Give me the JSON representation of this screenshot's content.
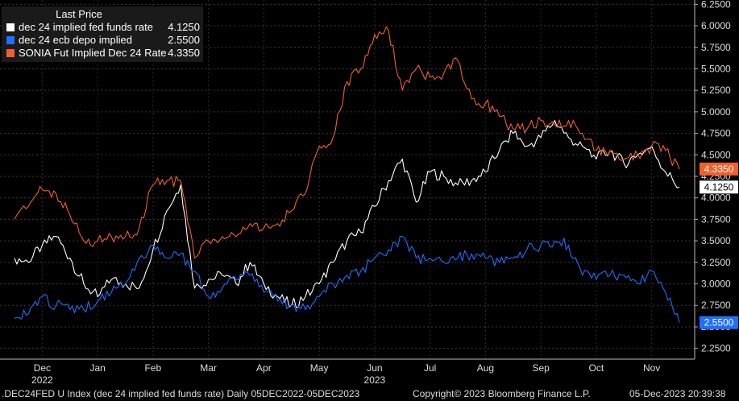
{
  "legend": {
    "title": "Last Price",
    "entries": [
      {
        "label": "dec 24 implied fed funds rate",
        "value": "4.1250",
        "color": "#ffffff"
      },
      {
        "label": "dec 24 ecb depo implied",
        "value": "2.5500",
        "color": "#1f6fff"
      },
      {
        "label": "SONIA Fut Implied Dec 24 Rate",
        "value": "4.3350",
        "color": "#f0602c"
      }
    ]
  },
  "footer": {
    "ticker": ".DEC24FED U Index (dec 24 implied fed funds rate)  Daily 05DEC2022-05DEC2023",
    "copyright": "Copyright© 2023 Bloomberg Finance L.P.",
    "timestamp": "05-Dec-2023 20:39:38"
  },
  "chart_data": {
    "type": "line",
    "title": "",
    "ylim": [
      2.125,
      6.3
    ],
    "yticks": [
      2.25,
      2.5,
      2.75,
      3.0,
      3.25,
      3.5,
      3.75,
      4.0,
      4.25,
      4.5,
      4.75,
      5.0,
      5.25,
      5.5,
      5.75,
      6.0,
      6.25
    ],
    "ytick_labels": [
      "2.2500",
      "2.5000",
      "2.7500",
      "3.0000",
      "3.2500",
      "3.5000",
      "3.7500",
      "4.0000",
      "4.2500",
      "4.5000",
      "4.7500",
      "5.0000",
      "5.2500",
      "5.5000",
      "5.7500",
      "6.0000",
      "6.2500"
    ],
    "month_labels": [
      "Dec",
      "Jan",
      "Feb",
      "Mar",
      "Apr",
      "May",
      "Jun",
      "Jul",
      "Aug",
      "Sep",
      "Oct",
      "Nov"
    ],
    "year_labels": [
      {
        "text": "2022",
        "month_index": 0
      },
      {
        "text": "2023",
        "month_index": 6
      }
    ],
    "last_values": [
      {
        "text": "4.3350",
        "value": 4.335,
        "color": "#f0602c",
        "text_color": "#ffffff"
      },
      {
        "text": "4.1250",
        "value": 4.125,
        "color": "#ffffff",
        "text_color": "#000000"
      },
      {
        "text": "2.5500",
        "value": 2.55,
        "color": "#1f6fff",
        "text_color": "#ffffff"
      }
    ],
    "x": [
      0,
      0.25,
      0.5,
      0.75,
      1,
      1.25,
      1.5,
      1.75,
      2,
      2.25,
      2.5,
      2.75,
      3,
      3.25,
      3.5,
      3.75,
      4,
      4.25,
      4.5,
      4.75,
      5,
      5.25,
      5.5,
      5.75,
      6,
      6.25,
      6.5,
      6.75,
      7,
      7.25,
      7.5,
      7.75,
      8,
      8.25,
      8.5,
      8.75,
      9,
      9.25,
      9.5,
      9.75,
      10,
      10.25,
      10.5,
      10.75,
      11,
      11.25,
      11.5,
      11.75,
      12
    ],
    "series": [
      {
        "name": "dec 24 implied fed funds rate",
        "color": "#ffffff",
        "values": [
          3.3,
          3.25,
          3.45,
          3.55,
          3.3,
          3.0,
          2.85,
          3.05,
          3.0,
          2.95,
          3.4,
          3.85,
          4.15,
          2.95,
          3.05,
          3.1,
          3.0,
          3.25,
          3.0,
          2.85,
          2.75,
          2.85,
          3.0,
          3.25,
          3.5,
          3.6,
          3.9,
          4.2,
          4.45,
          3.95,
          4.3,
          4.25,
          4.15,
          4.2,
          4.3,
          4.55,
          4.75,
          4.6,
          4.7,
          4.9,
          4.7,
          4.6,
          4.45,
          4.55,
          4.4,
          4.5,
          4.6,
          4.3,
          4.125
        ]
      },
      {
        "name": "dec 24 ecb depo implied",
        "color": "#1f6fff",
        "values": [
          2.6,
          2.65,
          2.85,
          2.75,
          2.7,
          2.7,
          2.8,
          2.9,
          3.0,
          3.3,
          3.45,
          3.3,
          3.35,
          3.15,
          2.85,
          2.95,
          3.05,
          3.1,
          2.9,
          2.8,
          2.75,
          2.7,
          2.85,
          3.0,
          3.1,
          3.15,
          3.3,
          3.4,
          3.55,
          3.3,
          3.3,
          3.25,
          3.3,
          3.35,
          3.3,
          3.25,
          3.3,
          3.4,
          3.45,
          3.5,
          3.45,
          3.1,
          3.05,
          3.1,
          3.1,
          3.0,
          3.15,
          2.9,
          2.55
        ]
      },
      {
        "name": "SONIA Fut Implied Dec 24 Rate",
        "color": "#f0602c",
        "values": [
          3.75,
          3.9,
          4.1,
          4.05,
          3.8,
          3.5,
          3.5,
          3.55,
          3.55,
          3.65,
          4.15,
          4.2,
          4.2,
          3.3,
          3.5,
          3.55,
          3.55,
          3.7,
          3.65,
          3.7,
          3.85,
          4.05,
          4.6,
          4.7,
          5.35,
          5.5,
          5.9,
          5.95,
          5.25,
          5.5,
          5.4,
          5.45,
          5.6,
          5.15,
          5.1,
          4.95,
          4.8,
          4.8,
          4.9,
          4.85,
          4.9,
          4.75,
          4.55,
          4.55,
          4.45,
          4.5,
          4.6,
          4.55,
          4.335
        ]
      }
    ]
  }
}
